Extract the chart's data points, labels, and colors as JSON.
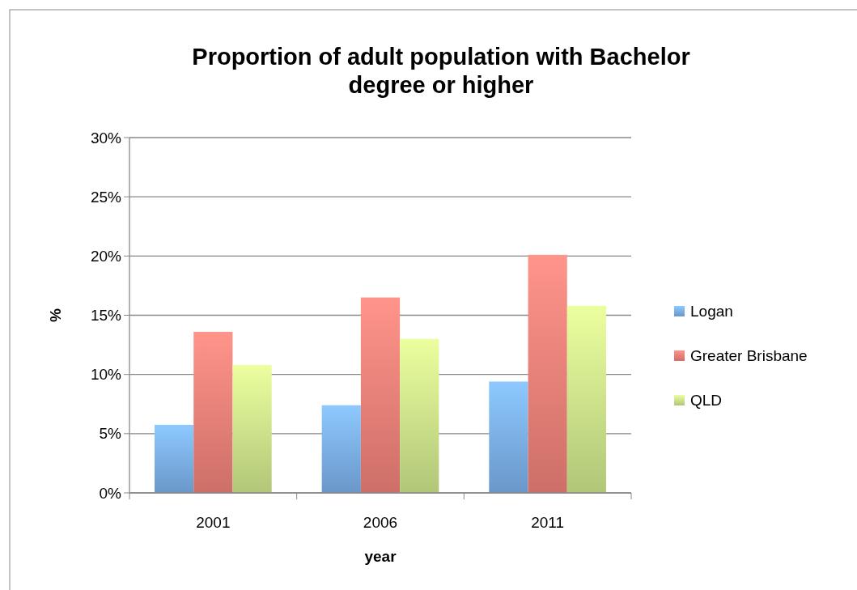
{
  "chart_data": {
    "type": "bar",
    "title": "Proportion of adult population with Bachelor degree or higher",
    "xlabel": "year",
    "ylabel": "%",
    "categories": [
      "2001",
      "2006",
      "2011"
    ],
    "series": [
      {
        "name": "Logan",
        "color": "#7aaee8",
        "values": [
          5.75,
          7.4,
          9.4
        ]
      },
      {
        "name": "Greater Brisbane",
        "color": "#ec8078",
        "values": [
          13.6,
          16.5,
          20.1
        ]
      },
      {
        "name": "QLD",
        "color": "#cce48a",
        "values": [
          10.8,
          13.0,
          15.8
        ]
      }
    ],
    "ylim": [
      0,
      30
    ],
    "yticks": [
      {
        "value": 0,
        "label": "0%"
      },
      {
        "value": 5,
        "label": "5%"
      },
      {
        "value": 10,
        "label": "10%"
      },
      {
        "value": 15,
        "label": "15%"
      },
      {
        "value": 20,
        "label": "20%"
      },
      {
        "value": 25,
        "label": "25%"
      },
      {
        "value": 30,
        "label": "30%"
      }
    ],
    "grid": "y",
    "legend": "right"
  }
}
